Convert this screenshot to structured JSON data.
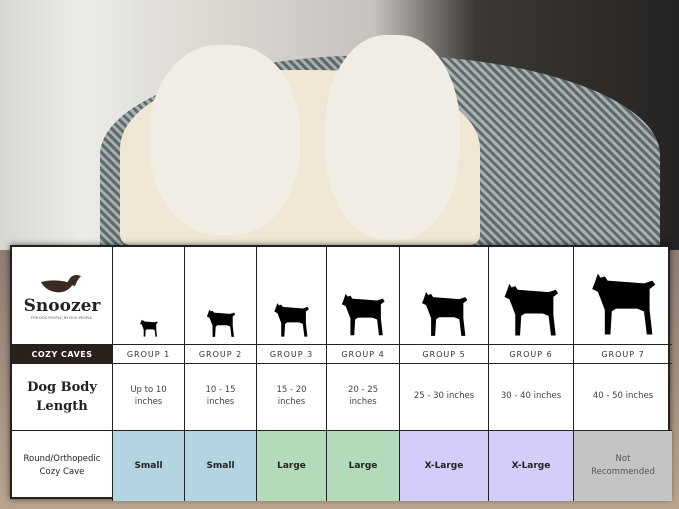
{
  "brand": {
    "name": "Snoozer",
    "tagline": "FOR DOG PEOPLE, BY DOG PEOPLE.",
    "product_line": "COZY CAVES"
  },
  "rows": {
    "length_label": "Dog Body Length",
    "cave_label": "Round/Orthopedic Cozy Cave"
  },
  "groups": [
    {
      "label": "GROUP 1",
      "length": "Up to 10 inches",
      "size": "Small",
      "color": "#b3d4e1",
      "scale": 0.28
    },
    {
      "label": "GROUP 2",
      "length": "10 - 15 inches",
      "size": "Small",
      "color": "#b3d4e1",
      "scale": 0.45
    },
    {
      "label": "GROUP 3",
      "length": "15 - 20 inches",
      "size": "Large",
      "color": "#b4dbb9",
      "scale": 0.55
    },
    {
      "label": "GROUP 4",
      "length": "20 - 25 inches",
      "size": "Large",
      "color": "#b4dbb9",
      "scale": 0.68
    },
    {
      "label": "GROUP 5",
      "length": "25 - 30 inches",
      "size": "X-Large",
      "color": "#d4ccfa",
      "scale": 0.72
    },
    {
      "label": "GROUP 6",
      "length": "30 - 40 inches",
      "size": "X-Large",
      "color": "#d4ccfa",
      "scale": 0.85
    },
    {
      "label": "GROUP 7",
      "length": "40 - 50 inches",
      "size": "Not Recommended",
      "color": "#c4c4c4",
      "scale": 1.0
    }
  ]
}
